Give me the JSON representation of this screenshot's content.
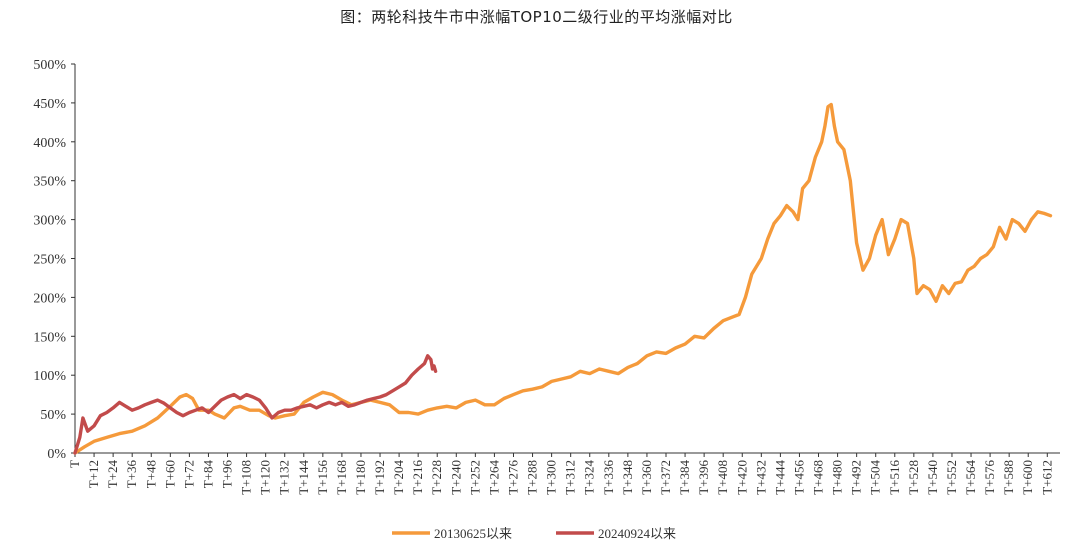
{
  "chart_data": {
    "type": "line",
    "title": "图：两轮科技牛市中涨幅TOP10二级行业的平均涨幅对比",
    "xlabel": "",
    "ylabel": "",
    "ylim": [
      0,
      500
    ],
    "xlim": [
      0,
      620
    ],
    "y_ticks": [
      "0%",
      "50%",
      "100%",
      "150%",
      "200%",
      "250%",
      "300%",
      "350%",
      "400%",
      "450%",
      "500%"
    ],
    "x_ticks": [
      "T",
      "T+12",
      "T+24",
      "T+36",
      "T+48",
      "T+60",
      "T+72",
      "T+84",
      "T+96",
      "T+108",
      "T+120",
      "T+132",
      "T+144",
      "T+156",
      "T+168",
      "T+180",
      "T+192",
      "T+204",
      "T+216",
      "T+228",
      "T+240",
      "T+252",
      "T+264",
      "T+276",
      "T+288",
      "T+300",
      "T+312",
      "T+324",
      "T+336",
      "T+348",
      "T+360",
      "T+372",
      "T+384",
      "T+396",
      "T+408",
      "T+420",
      "T+432",
      "T+444",
      "T+456",
      "T+468",
      "T+480",
      "T+492",
      "T+504",
      "T+516",
      "T+528",
      "T+540",
      "T+552",
      "T+564",
      "T+576",
      "T+588",
      "T+600",
      "T+612"
    ],
    "legend": {
      "position": "bottom"
    },
    "series": [
      {
        "name": "20130625以来",
        "color": "#F59A3B",
        "points": [
          [
            0,
            0
          ],
          [
            6,
            8
          ],
          [
            12,
            15
          ],
          [
            20,
            20
          ],
          [
            28,
            25
          ],
          [
            36,
            28
          ],
          [
            44,
            35
          ],
          [
            52,
            45
          ],
          [
            60,
            60
          ],
          [
            66,
            72
          ],
          [
            70,
            75
          ],
          [
            74,
            70
          ],
          [
            78,
            55
          ],
          [
            84,
            55
          ],
          [
            88,
            50
          ],
          [
            94,
            45
          ],
          [
            100,
            58
          ],
          [
            104,
            60
          ],
          [
            110,
            55
          ],
          [
            116,
            55
          ],
          [
            122,
            48
          ],
          [
            126,
            45
          ],
          [
            132,
            48
          ],
          [
            138,
            50
          ],
          [
            144,
            65
          ],
          [
            150,
            72
          ],
          [
            156,
            78
          ],
          [
            162,
            75
          ],
          [
            168,
            68
          ],
          [
            174,
            62
          ],
          [
            180,
            65
          ],
          [
            186,
            68
          ],
          [
            192,
            65
          ],
          [
            198,
            62
          ],
          [
            204,
            52
          ],
          [
            210,
            52
          ],
          [
            216,
            50
          ],
          [
            222,
            55
          ],
          [
            228,
            58
          ],
          [
            234,
            60
          ],
          [
            240,
            58
          ],
          [
            246,
            65
          ],
          [
            252,
            68
          ],
          [
            258,
            62
          ],
          [
            264,
            62
          ],
          [
            270,
            70
          ],
          [
            276,
            75
          ],
          [
            282,
            80
          ],
          [
            288,
            82
          ],
          [
            294,
            85
          ],
          [
            300,
            92
          ],
          [
            306,
            95
          ],
          [
            312,
            98
          ],
          [
            318,
            105
          ],
          [
            324,
            102
          ],
          [
            330,
            108
          ],
          [
            336,
            105
          ],
          [
            342,
            102
          ],
          [
            348,
            110
          ],
          [
            354,
            115
          ],
          [
            360,
            125
          ],
          [
            366,
            130
          ],
          [
            372,
            128
          ],
          [
            378,
            135
          ],
          [
            384,
            140
          ],
          [
            390,
            150
          ],
          [
            396,
            148
          ],
          [
            402,
            160
          ],
          [
            408,
            170
          ],
          [
            414,
            175
          ],
          [
            418,
            178
          ],
          [
            422,
            200
          ],
          [
            426,
            230
          ],
          [
            432,
            250
          ],
          [
            436,
            275
          ],
          [
            440,
            295
          ],
          [
            444,
            305
          ],
          [
            448,
            318
          ],
          [
            452,
            310
          ],
          [
            455,
            300
          ],
          [
            458,
            340
          ],
          [
            462,
            350
          ],
          [
            466,
            380
          ],
          [
            470,
            400
          ],
          [
            472,
            420
          ],
          [
            474,
            445
          ],
          [
            476,
            448
          ],
          [
            478,
            420
          ],
          [
            480,
            400
          ],
          [
            484,
            390
          ],
          [
            488,
            350
          ],
          [
            492,
            270
          ],
          [
            496,
            235
          ],
          [
            500,
            250
          ],
          [
            504,
            280
          ],
          [
            508,
            300
          ],
          [
            512,
            255
          ],
          [
            516,
            275
          ],
          [
            520,
            300
          ],
          [
            524,
            295
          ],
          [
            528,
            250
          ],
          [
            530,
            205
          ],
          [
            534,
            215
          ],
          [
            538,
            210
          ],
          [
            542,
            195
          ],
          [
            546,
            215
          ],
          [
            550,
            205
          ],
          [
            554,
            218
          ],
          [
            558,
            220
          ],
          [
            562,
            235
          ],
          [
            566,
            240
          ],
          [
            570,
            250
          ],
          [
            574,
            255
          ],
          [
            578,
            265
          ],
          [
            582,
            290
          ],
          [
            586,
            275
          ],
          [
            590,
            300
          ],
          [
            594,
            295
          ],
          [
            598,
            285
          ],
          [
            602,
            300
          ],
          [
            606,
            310
          ],
          [
            610,
            308
          ],
          [
            614,
            305
          ]
        ]
      },
      {
        "name": "20240924以来",
        "color": "#C24B4B",
        "points": [
          [
            0,
            0
          ],
          [
            3,
            20
          ],
          [
            5,
            45
          ],
          [
            8,
            28
          ],
          [
            12,
            35
          ],
          [
            16,
            48
          ],
          [
            20,
            52
          ],
          [
            24,
            58
          ],
          [
            28,
            65
          ],
          [
            32,
            60
          ],
          [
            36,
            55
          ],
          [
            40,
            58
          ],
          [
            44,
            62
          ],
          [
            48,
            65
          ],
          [
            52,
            68
          ],
          [
            56,
            64
          ],
          [
            60,
            58
          ],
          [
            64,
            52
          ],
          [
            68,
            48
          ],
          [
            72,
            52
          ],
          [
            76,
            55
          ],
          [
            80,
            58
          ],
          [
            84,
            52
          ],
          [
            88,
            60
          ],
          [
            92,
            68
          ],
          [
            96,
            72
          ],
          [
            100,
            75
          ],
          [
            104,
            70
          ],
          [
            108,
            75
          ],
          [
            112,
            72
          ],
          [
            116,
            68
          ],
          [
            120,
            58
          ],
          [
            124,
            45
          ],
          [
            128,
            52
          ],
          [
            132,
            55
          ],
          [
            136,
            55
          ],
          [
            140,
            58
          ],
          [
            144,
            60
          ],
          [
            148,
            62
          ],
          [
            152,
            58
          ],
          [
            156,
            62
          ],
          [
            160,
            65
          ],
          [
            164,
            62
          ],
          [
            168,
            65
          ],
          [
            172,
            60
          ],
          [
            176,
            62
          ],
          [
            180,
            65
          ],
          [
            184,
            68
          ],
          [
            188,
            70
          ],
          [
            192,
            72
          ],
          [
            196,
            75
          ],
          [
            200,
            80
          ],
          [
            204,
            85
          ],
          [
            208,
            90
          ],
          [
            212,
            100
          ],
          [
            216,
            108
          ],
          [
            220,
            115
          ],
          [
            222,
            125
          ],
          [
            224,
            120
          ],
          [
            225,
            108
          ],
          [
            226,
            112
          ],
          [
            227,
            105
          ]
        ]
      }
    ]
  }
}
